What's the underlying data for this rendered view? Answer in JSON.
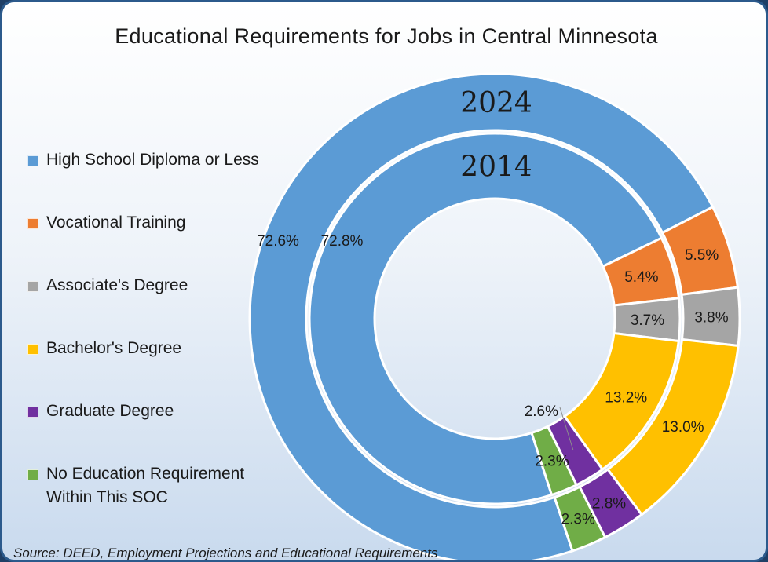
{
  "title": "Educational Requirements for Jobs in Central Minnesota",
  "source": "Source: DEED, Employment Projections and Educational Requirements",
  "colors": {
    "high_school": "#5b9bd5",
    "vocational": "#ed7d31",
    "associate": "#a5a5a5",
    "bachelor": "#ffc000",
    "graduate": "#7030a0",
    "no_education": "#70ad47"
  },
  "chart_data": {
    "type": "pie",
    "subtype": "doughnut",
    "title": "Educational Requirements for Jobs in Central Minnesota",
    "legend_position": "left",
    "categories": [
      "High School Diploma or Less",
      "Vocational Training",
      "Associate's Degree",
      "Bachelor's Degree",
      "Graduate Degree",
      "No Education Requirement\nWithin This SOC"
    ],
    "series": [
      {
        "name": "2024",
        "ring": "outer",
        "values": [
          72.6,
          5.5,
          3.8,
          13.0,
          2.8,
          2.3
        ],
        "labels": [
          "72.6%",
          "5.5%",
          "3.8%",
          "13.0%",
          "2.8%",
          "2.3%"
        ]
      },
      {
        "name": "2014",
        "ring": "inner",
        "values": [
          72.8,
          5.4,
          3.7,
          13.2,
          2.6,
          2.3
        ],
        "labels": [
          "72.8%",
          "5.4%",
          "3.7%",
          "13.2%",
          "2.6%",
          "2.3%"
        ]
      }
    ]
  }
}
